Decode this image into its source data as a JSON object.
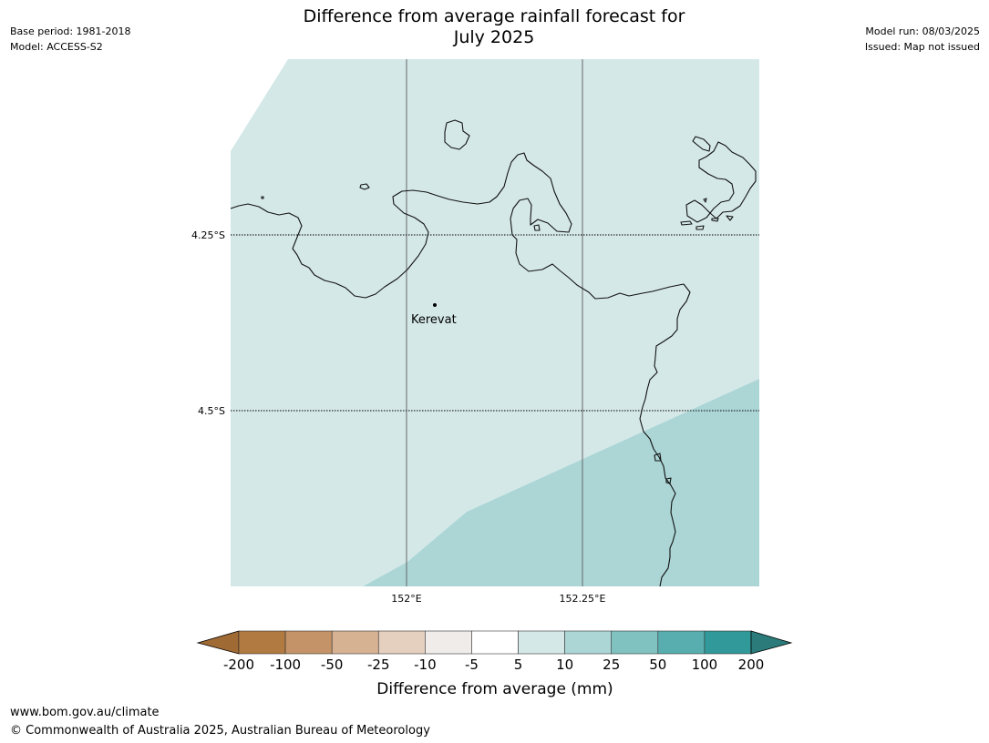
{
  "header": {
    "title_line1": "Difference from average rainfall forecast for",
    "title_line2": "July 2025",
    "base_period": "Base period: 1981-2018",
    "model": "Model: ACCESS-S2",
    "model_run": "Model run: 08/03/2025",
    "issued": "Issued: Map not issued"
  },
  "map": {
    "lat_labels": [
      "4.25°S",
      "4.5°S"
    ],
    "lon_labels": [
      "152°E",
      "152.25°E"
    ],
    "place": {
      "name": "Kerevat",
      "lat": -4.35,
      "lon": 152.04
    },
    "regions": [
      {
        "category": "5 to 10",
        "color": "#d5e8e8"
      },
      {
        "category": "10 to 25",
        "color": "#acd6d6"
      }
    ]
  },
  "legend": {
    "title": "Difference from average (mm)",
    "ticks": [
      "-200",
      "-100",
      "-50",
      "-25",
      "-10",
      "-5",
      "5",
      "10",
      "25",
      "50",
      "100",
      "200"
    ],
    "colors": [
      "#a06a34",
      "#b17a41",
      "#c49468",
      "#d6b293",
      "#e5d0bf",
      "#efecea",
      "#ffffff",
      "#d5e8e8",
      "#acd6d6",
      "#80c2c0",
      "#58aeae",
      "#32999a",
      "#2a7b7a"
    ]
  },
  "footer": {
    "url": "www.bom.gov.au/climate",
    "copyright": "© Commonwealth of Australia 2025, Australian Bureau of Meteorology"
  }
}
